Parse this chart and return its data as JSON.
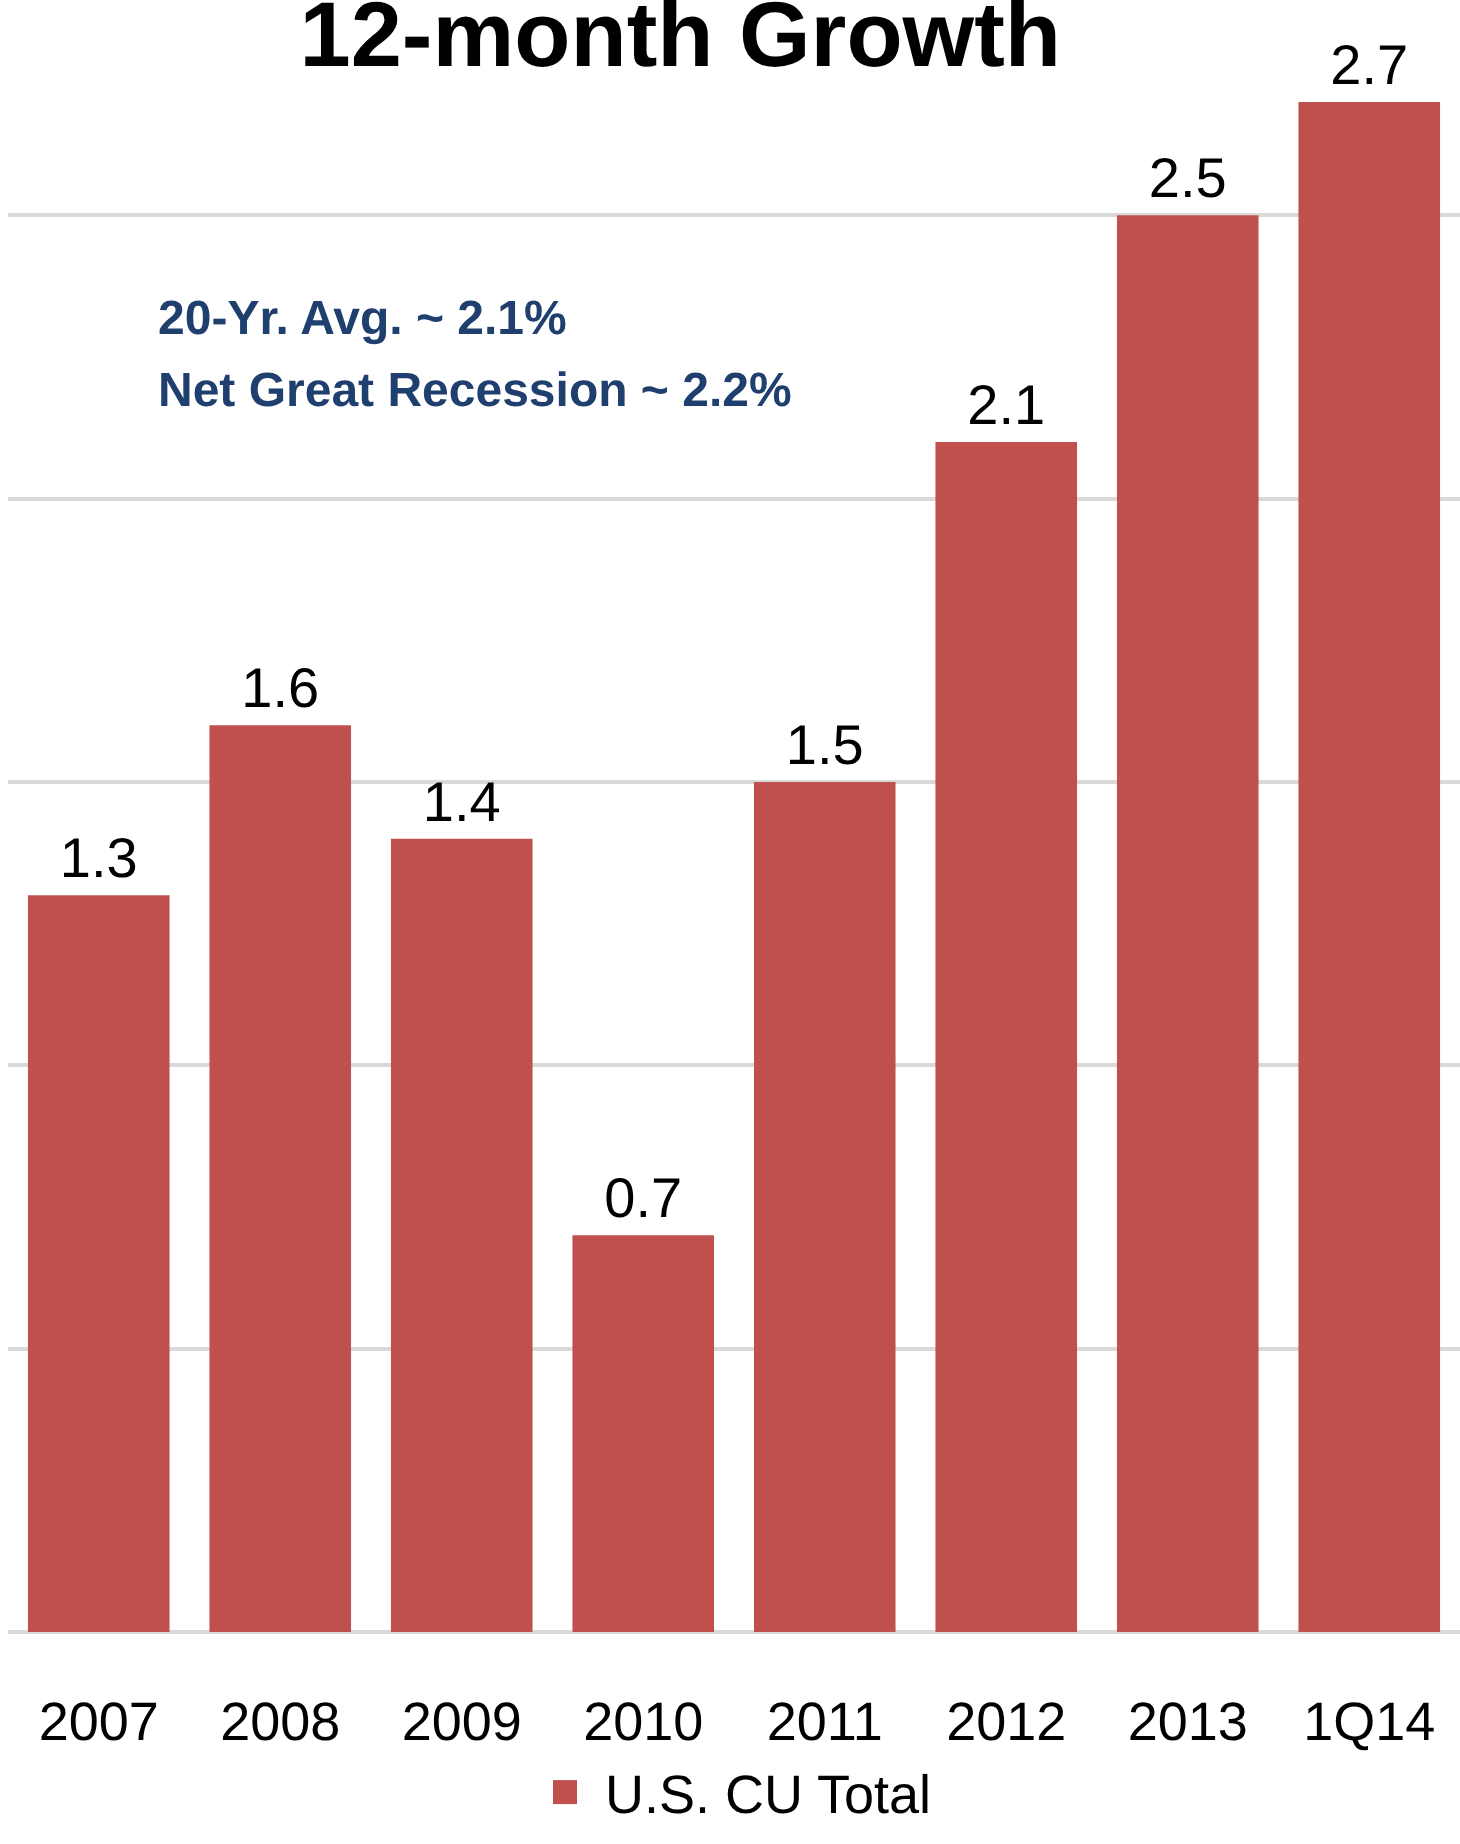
{
  "chart_data": {
    "type": "bar",
    "title": "12-month Growth",
    "categories": [
      "2007",
      "2008",
      "2009",
      "2010",
      "2011",
      "2012",
      "2013",
      "1Q14"
    ],
    "series": [
      {
        "name": "U.S. CU Total",
        "color": "#c0504d",
        "values": [
          1.3,
          1.6,
          1.4,
          0.7,
          1.5,
          2.1,
          2.5,
          2.7
        ]
      }
    ],
    "annotations": [
      "20-Yr. Avg. ~ 2.1%",
      "Net Great Recession ~ 2.2%"
    ],
    "ylim": [
      0,
      2.88
    ],
    "yticks": [
      {
        "value": 0,
        "label": null
      },
      {
        "value": 0.5,
        "label": null
      },
      {
        "value": 1,
        "label": null
      },
      {
        "value": 1.5,
        "label": null
      },
      {
        "value": 2,
        "label": null
      },
      {
        "value": 2.5,
        "label": null
      }
    ],
    "tick_labels": "x",
    "grid": "y",
    "data_labels": true,
    "legend": "bottom"
  }
}
